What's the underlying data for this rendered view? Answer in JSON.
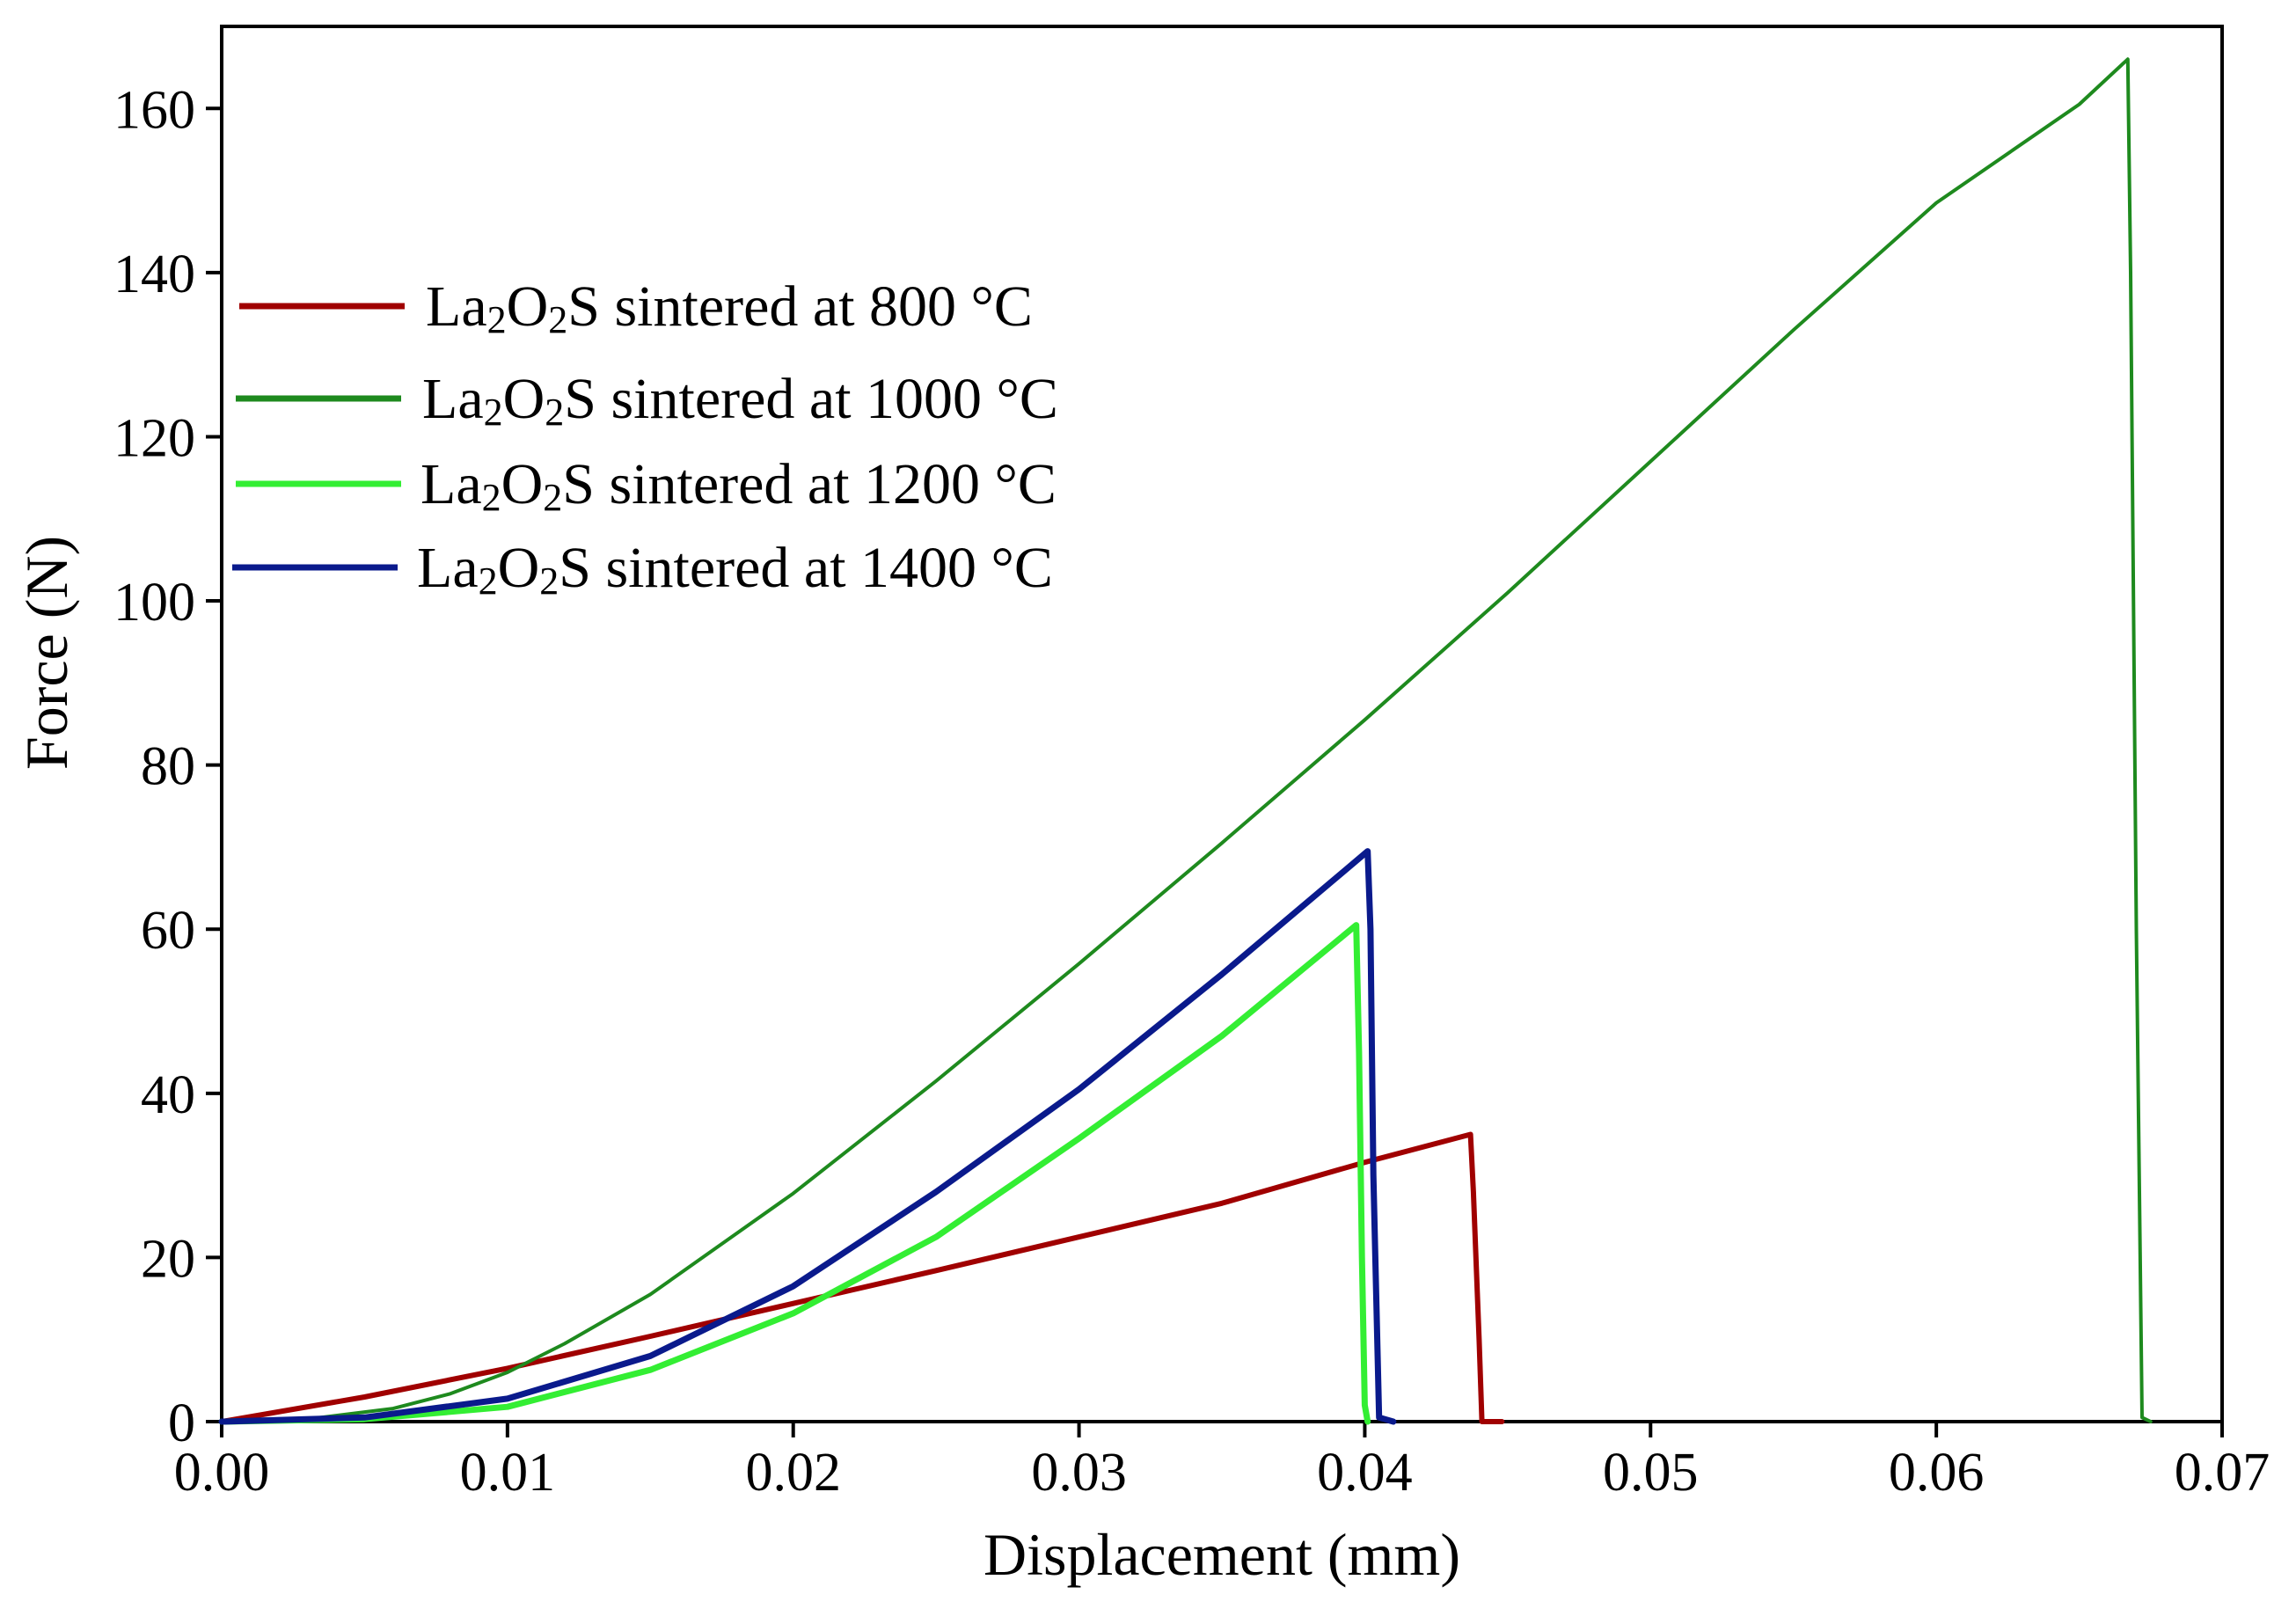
{
  "chart_data": {
    "type": "line",
    "title": "",
    "xlabel": "Displacement (mm)",
    "ylabel": "Force (N)",
    "xlim": [
      0.0,
      0.07
    ],
    "ylim": [
      0,
      170
    ],
    "xticks": [
      "0.00",
      "0.01",
      "0.02",
      "0.03",
      "0.04",
      "0.05",
      "0.06",
      "0.07"
    ],
    "yticks": [
      "0",
      "20",
      "40",
      "60",
      "80",
      "100",
      "120",
      "140",
      "160"
    ],
    "grid": false,
    "legend_position": "upper-left",
    "series": [
      {
        "name_prefix": "La",
        "sub1": "2",
        "name_mid": "O",
        "sub2": "2",
        "name_suffix": "S sintered at 800 °C",
        "color": "#A00000",
        "x": [
          0.0,
          0.005,
          0.01,
          0.015,
          0.02,
          0.025,
          0.03,
          0.035,
          0.04,
          0.0437,
          0.0438,
          0.044,
          0.0441,
          0.0448
        ],
        "y": [
          0.0,
          3.0,
          6.5,
          10.4,
          14.4,
          18.4,
          22.5,
          26.6,
          31.6,
          35.0,
          28.0,
          10.0,
          0.0,
          0.0
        ]
      },
      {
        "name_prefix": "La",
        "sub1": "2",
        "name_mid": "O",
        "sub2": "2",
        "name_suffix": "S sintered at 1000 °C",
        "color": "#1E8A1E",
        "x": [
          0.0,
          0.003,
          0.006,
          0.008,
          0.01,
          0.012,
          0.015,
          0.02,
          0.025,
          0.03,
          0.035,
          0.04,
          0.045,
          0.05,
          0.055,
          0.06,
          0.065,
          0.0667,
          0.0668,
          0.067,
          0.0672,
          0.0675
        ],
        "y": [
          0.0,
          0.3,
          1.6,
          3.4,
          6.0,
          9.5,
          15.5,
          27.8,
          41.5,
          55.8,
          70.5,
          85.5,
          101.0,
          117.0,
          133.0,
          148.5,
          160.5,
          166.0,
          140.0,
          60.0,
          0.5,
          0.0
        ]
      },
      {
        "name_prefix": "La",
        "sub1": "2",
        "name_mid": "O",
        "sub2": "2",
        "name_suffix": "S sintered at 1200 °C",
        "color": "#33EE33",
        "x": [
          0.0,
          0.005,
          0.01,
          0.015,
          0.02,
          0.025,
          0.03,
          0.035,
          0.0397,
          0.0398,
          0.0399,
          0.04,
          0.0401
        ],
        "y": [
          0.0,
          0.3,
          1.8,
          6.3,
          13.2,
          22.5,
          34.5,
          47.0,
          60.5,
          45.0,
          20.0,
          2.0,
          0.0
        ]
      },
      {
        "name_prefix": "La",
        "sub1": "2",
        "name_mid": "O",
        "sub2": "2",
        "name_suffix": "S sintered at 1400 °C",
        "color": "#0A1A8C",
        "x": [
          0.0,
          0.005,
          0.01,
          0.015,
          0.02,
          0.025,
          0.03,
          0.035,
          0.0401,
          0.0402,
          0.0403,
          0.0405,
          0.041
        ],
        "y": [
          0.0,
          0.5,
          2.8,
          8.0,
          16.5,
          28.0,
          40.5,
          54.5,
          69.5,
          60.0,
          30.0,
          0.5,
          0.0
        ]
      }
    ]
  }
}
